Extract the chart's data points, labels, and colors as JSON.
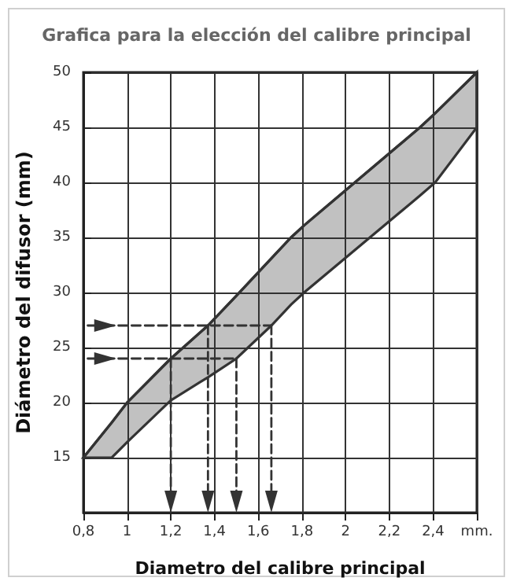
{
  "chart_data": {
    "type": "line",
    "title": "Grafica para la elección del calibre principal",
    "xlabel": "Diametro del calibre principal",
    "ylabel": "Diámetro del difusor (mm)",
    "xlim": [
      0.8,
      2.6
    ],
    "xticks": [
      {
        "value": 0.8,
        "label": "0,8"
      },
      1,
      {
        "value": 1.2,
        "label": "1,2"
      },
      {
        "value": 1.4,
        "label": "1,4"
      },
      {
        "value": 1.6,
        "label": "1,6"
      },
      {
        "value": 1.8,
        "label": "1,8"
      },
      2,
      {
        "value": 2.2,
        "label": "2,2"
      },
      {
        "value": 2.4,
        "label": "2,4"
      },
      {
        "value": 2.6,
        "label": "mm."
      }
    ],
    "ylim": [
      10,
      50
    ],
    "yticks": [
      {
        "value": 10,
        "label": null
      },
      15,
      20,
      25,
      30,
      35,
      40,
      45,
      50
    ],
    "grid": true,
    "series": [
      {
        "color": "#333333",
        "line_style": "solid",
        "marker": "none",
        "x": [
          0.8,
          0.93,
          1.0,
          1.2,
          1.37,
          1.5,
          1.66,
          1.75,
          1.81,
          2.34,
          2.41,
          2.6
        ],
        "values": [
          15,
          18.2,
          20,
          24,
          27,
          29.7,
          33.1,
          35,
          36.1,
          45,
          46.3,
          50
        ],
        "lower": [
          15,
          15,
          16.4,
          20.2,
          22.3,
          24,
          27,
          28.9,
          30,
          38.8,
          40,
          45
        ],
        "upper": [
          15,
          18.2,
          20,
          24,
          27,
          29.7,
          33.1,
          35,
          36.1,
          45,
          46.3,
          50
        ]
      },
      {
        "color": "#333333",
        "line_style": "dashed",
        "marker": "triangle",
        "x": [
          0.82,
          0.9
        ],
        "values": [
          27,
          27
        ]
      },
      {
        "color": "#333333",
        "line_style": "dashed",
        "marker": "triangle",
        "x": [
          0.82,
          0.9
        ],
        "values": [
          24,
          24
        ]
      },
      {
        "color": "#333333",
        "line_style": "dashed",
        "marker": "none",
        "x": [
          0.9,
          1.66
        ],
        "values": [
          27,
          27
        ]
      },
      {
        "color": "#333333",
        "line_style": "dashed",
        "marker": "none",
        "x": [
          0.9,
          1.5
        ],
        "values": [
          24,
          24
        ]
      },
      {
        "color": "#333333",
        "line_style": "dashed",
        "marker": "triangle",
        "x": [
          1.66,
          1.66
        ],
        "values": [
          27,
          11
        ]
      },
      {
        "color": "#333333",
        "line_style": "dashed",
        "marker": "triangle",
        "x": [
          1.5,
          1.5
        ],
        "values": [
          24,
          11
        ]
      },
      {
        "color": "#333333",
        "line_style": "dashed",
        "marker": "triangle",
        "x": [
          1.2,
          1.2
        ],
        "values": [
          24,
          11
        ]
      },
      {
        "color": "#333333",
        "line_style": "dashed",
        "marker": "triangle",
        "x": [
          1.37,
          1.37
        ],
        "values": [
          27,
          11
        ]
      }
    ]
  }
}
